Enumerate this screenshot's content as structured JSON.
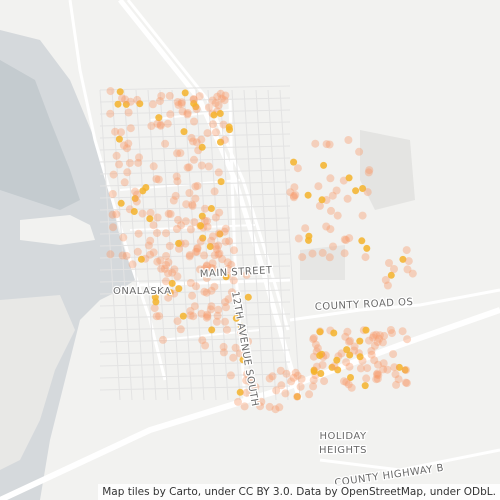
{
  "map": {
    "labels": {
      "city": "ONALASKA",
      "main_street": "MAIN STREET",
      "avenue": "12TH AVENUE SOUTH",
      "county_road": "COUNTY ROAD OS",
      "neighborhood": [
        "HOLIDAY",
        "HEIGHTS"
      ],
      "highway": "COUNTY HIGHWAY B"
    },
    "attribution": "Map tiles by Carto, under CC BY 3.0. Data by OpenStreetMap, under ODbL."
  }
}
